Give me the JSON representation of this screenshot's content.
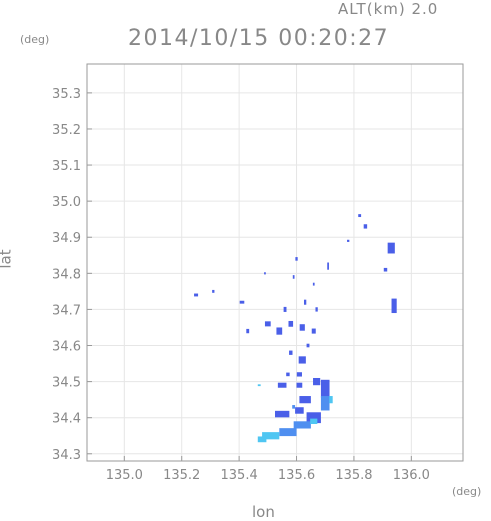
{
  "header": {
    "altitude": "ALT(km) 2.0",
    "timestamp": "2014/10/15 00:20:27"
  },
  "chart_data": {
    "type": "heatmap",
    "title": "2014/10/15 00:20:27",
    "xlabel": "lon",
    "ylabel": "lat",
    "xunit": "(deg)",
    "yunit": "(deg)",
    "xlim": [
      134.87,
      136.18
    ],
    "ylim": [
      34.28,
      35.38
    ],
    "xticks": [
      135.0,
      135.2,
      135.4,
      135.6,
      135.8,
      136.0
    ],
    "yticks": [
      34.3,
      34.4,
      34.5,
      34.6,
      34.7,
      34.8,
      34.9,
      35.0,
      35.1,
      35.2,
      35.3
    ],
    "xtick_labels": [
      "135.0",
      "135.2",
      "135.4",
      "135.6",
      "135.8",
      "136.0"
    ],
    "ytick_labels": [
      "34.3",
      "34.4",
      "34.5",
      "34.6",
      "34.7",
      "34.8",
      "34.9",
      "35.0",
      "35.1",
      "35.2",
      "35.3"
    ],
    "grid": true,
    "colors": {
      "low": "#4a5fe8",
      "mid": "#4f8ff0",
      "high": "#4fc6f2"
    },
    "cells": [
      {
        "lon": 135.82,
        "lat": 34.96,
        "w": 0.01,
        "h": 0.008,
        "level": "low"
      },
      {
        "lon": 135.84,
        "lat": 34.93,
        "w": 0.012,
        "h": 0.012,
        "level": "low"
      },
      {
        "lon": 135.93,
        "lat": 34.87,
        "w": 0.025,
        "h": 0.03,
        "level": "low"
      },
      {
        "lon": 135.91,
        "lat": 34.81,
        "w": 0.012,
        "h": 0.01,
        "level": "low"
      },
      {
        "lon": 135.94,
        "lat": 34.71,
        "w": 0.018,
        "h": 0.04,
        "level": "low"
      },
      {
        "lon": 135.78,
        "lat": 34.89,
        "w": 0.008,
        "h": 0.006,
        "level": "low"
      },
      {
        "lon": 135.71,
        "lat": 34.82,
        "w": 0.006,
        "h": 0.02,
        "level": "low"
      },
      {
        "lon": 135.6,
        "lat": 34.84,
        "w": 0.008,
        "h": 0.01,
        "level": "low"
      },
      {
        "lon": 135.59,
        "lat": 34.79,
        "w": 0.006,
        "h": 0.01,
        "level": "low"
      },
      {
        "lon": 135.66,
        "lat": 34.77,
        "w": 0.006,
        "h": 0.008,
        "level": "low"
      },
      {
        "lon": 135.49,
        "lat": 34.8,
        "w": 0.006,
        "h": 0.006,
        "level": "low"
      },
      {
        "lon": 135.25,
        "lat": 34.74,
        "w": 0.014,
        "h": 0.008,
        "level": "low"
      },
      {
        "lon": 135.31,
        "lat": 34.75,
        "w": 0.008,
        "h": 0.008,
        "level": "low"
      },
      {
        "lon": 135.41,
        "lat": 34.72,
        "w": 0.016,
        "h": 0.008,
        "level": "low"
      },
      {
        "lon": 135.43,
        "lat": 34.64,
        "w": 0.01,
        "h": 0.012,
        "level": "low"
      },
      {
        "lon": 135.5,
        "lat": 34.66,
        "w": 0.02,
        "h": 0.014,
        "level": "low"
      },
      {
        "lon": 135.54,
        "lat": 34.64,
        "w": 0.02,
        "h": 0.02,
        "level": "low"
      },
      {
        "lon": 135.58,
        "lat": 34.66,
        "w": 0.016,
        "h": 0.016,
        "level": "low"
      },
      {
        "lon": 135.62,
        "lat": 34.65,
        "w": 0.018,
        "h": 0.018,
        "level": "low"
      },
      {
        "lon": 135.66,
        "lat": 34.64,
        "w": 0.014,
        "h": 0.014,
        "level": "low"
      },
      {
        "lon": 135.56,
        "lat": 34.7,
        "w": 0.01,
        "h": 0.014,
        "level": "low"
      },
      {
        "lon": 135.63,
        "lat": 34.72,
        "w": 0.008,
        "h": 0.014,
        "level": "low"
      },
      {
        "lon": 135.67,
        "lat": 34.7,
        "w": 0.008,
        "h": 0.012,
        "level": "low"
      },
      {
        "lon": 135.58,
        "lat": 34.58,
        "w": 0.012,
        "h": 0.012,
        "level": "low"
      },
      {
        "lon": 135.62,
        "lat": 34.56,
        "w": 0.025,
        "h": 0.02,
        "level": "low"
      },
      {
        "lon": 135.61,
        "lat": 34.52,
        "w": 0.018,
        "h": 0.012,
        "level": "low"
      },
      {
        "lon": 135.57,
        "lat": 34.52,
        "w": 0.012,
        "h": 0.01,
        "level": "low"
      },
      {
        "lon": 135.55,
        "lat": 34.49,
        "w": 0.03,
        "h": 0.014,
        "level": "low"
      },
      {
        "lon": 135.61,
        "lat": 34.49,
        "w": 0.02,
        "h": 0.014,
        "level": "low"
      },
      {
        "lon": 135.67,
        "lat": 34.5,
        "w": 0.025,
        "h": 0.02,
        "level": "low"
      },
      {
        "lon": 135.7,
        "lat": 34.48,
        "w": 0.03,
        "h": 0.05,
        "level": "low"
      },
      {
        "lon": 135.63,
        "lat": 34.45,
        "w": 0.04,
        "h": 0.02,
        "level": "low"
      },
      {
        "lon": 135.61,
        "lat": 34.42,
        "w": 0.03,
        "h": 0.018,
        "level": "low"
      },
      {
        "lon": 135.55,
        "lat": 34.41,
        "w": 0.05,
        "h": 0.018,
        "level": "low"
      },
      {
        "lon": 135.7,
        "lat": 34.44,
        "w": 0.03,
        "h": 0.04,
        "level": "mid"
      },
      {
        "lon": 135.66,
        "lat": 34.4,
        "w": 0.05,
        "h": 0.03,
        "level": "low"
      },
      {
        "lon": 135.72,
        "lat": 34.45,
        "w": 0.012,
        "h": 0.02,
        "level": "high"
      },
      {
        "lon": 135.62,
        "lat": 34.38,
        "w": 0.06,
        "h": 0.02,
        "level": "mid"
      },
      {
        "lon": 135.57,
        "lat": 34.36,
        "w": 0.06,
        "h": 0.022,
        "level": "mid"
      },
      {
        "lon": 135.51,
        "lat": 34.35,
        "w": 0.06,
        "h": 0.02,
        "level": "high"
      },
      {
        "lon": 135.48,
        "lat": 34.34,
        "w": 0.03,
        "h": 0.016,
        "level": "high"
      },
      {
        "lon": 135.66,
        "lat": 34.39,
        "w": 0.025,
        "h": 0.015,
        "level": "high"
      },
      {
        "lon": 135.47,
        "lat": 34.49,
        "w": 0.01,
        "h": 0.005,
        "level": "high"
      },
      {
        "lon": 135.59,
        "lat": 34.43,
        "w": 0.01,
        "h": 0.01,
        "level": "mid"
      },
      {
        "lon": 135.64,
        "lat": 34.6,
        "w": 0.01,
        "h": 0.01,
        "level": "low"
      }
    ]
  }
}
